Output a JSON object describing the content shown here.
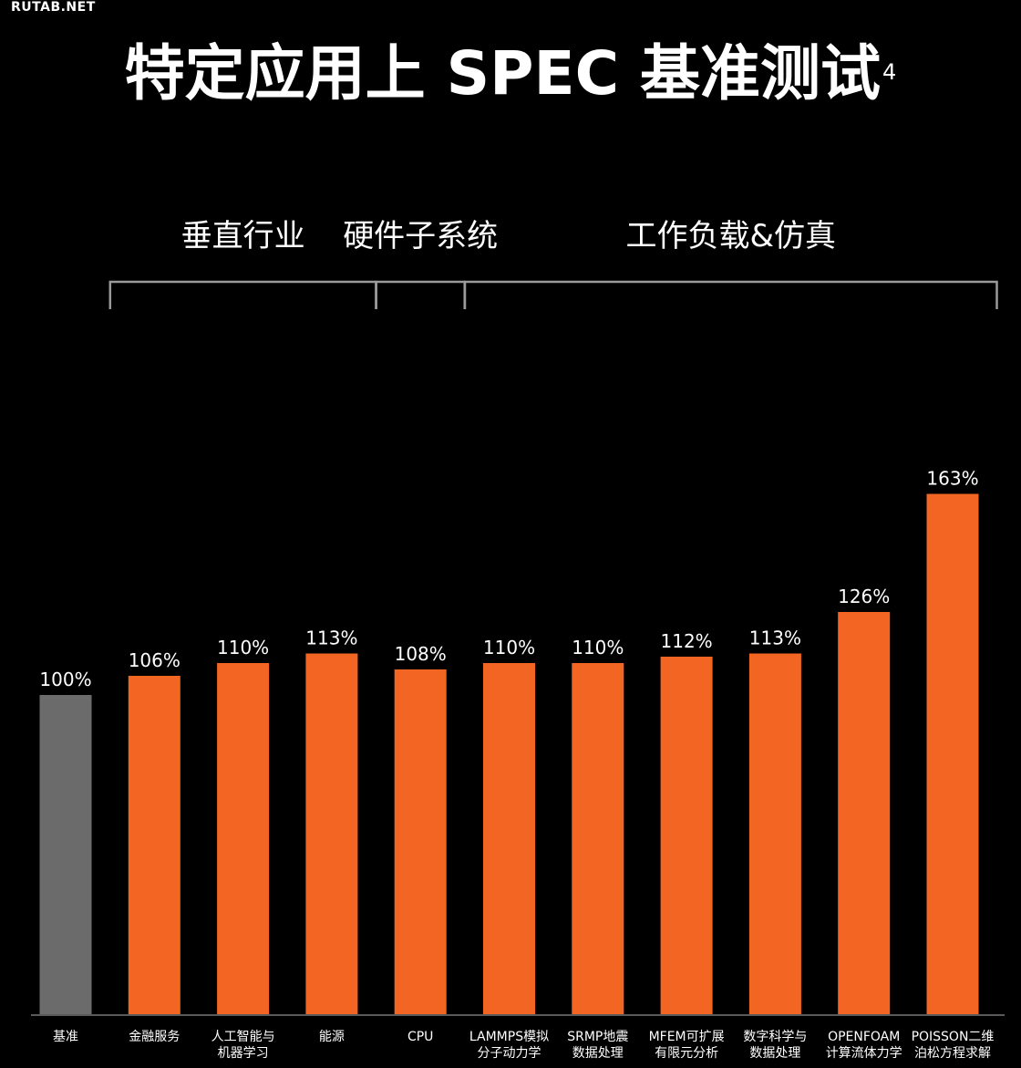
{
  "watermark": "RUTAB.NET",
  "title": "特定应用上 SPEC 基准测试",
  "title_footnote": "4",
  "chart_data": {
    "type": "bar",
    "title": "特定应用上 SPEC 基准测试",
    "xlabel": "",
    "ylabel": "",
    "ylim": [
      0,
      170
    ],
    "grid": false,
    "legend": "none",
    "categories": [
      [
        "基准"
      ],
      [
        "金融服务"
      ],
      [
        "人工智能与",
        "机器学习"
      ],
      [
        "能源"
      ],
      [
        "CPU"
      ],
      [
        "LAMMPS模拟",
        "分子动力学"
      ],
      [
        "SRMP地震",
        "数据处理"
      ],
      [
        "MFEM可扩展",
        "有限元分析"
      ],
      [
        "数字科学与",
        "数据处理"
      ],
      [
        "OPENFOAM",
        "计算流体力学"
      ],
      [
        "POISSON二维",
        "泊松方程求解"
      ]
    ],
    "values": [
      100,
      106,
      110,
      113,
      108,
      110,
      110,
      112,
      113,
      126,
      163
    ],
    "value_labels": [
      "100%",
      "106%",
      "110%",
      "113%",
      "108%",
      "110%",
      "110%",
      "112%",
      "113%",
      "126%",
      "163%"
    ],
    "groups": [
      {
        "label": "垂直行业",
        "first": 1,
        "last": 3
      },
      {
        "label": "硬件子系统",
        "first": 4,
        "last": 4
      },
      {
        "label": "工作负载&仿真",
        "first": 5,
        "last": 10
      }
    ],
    "colors": {
      "baseline": "#6b6b6b",
      "bar": "#f26522",
      "bracket": "#9a9a9a",
      "axis": "#777777",
      "text": "#ffffff"
    }
  }
}
